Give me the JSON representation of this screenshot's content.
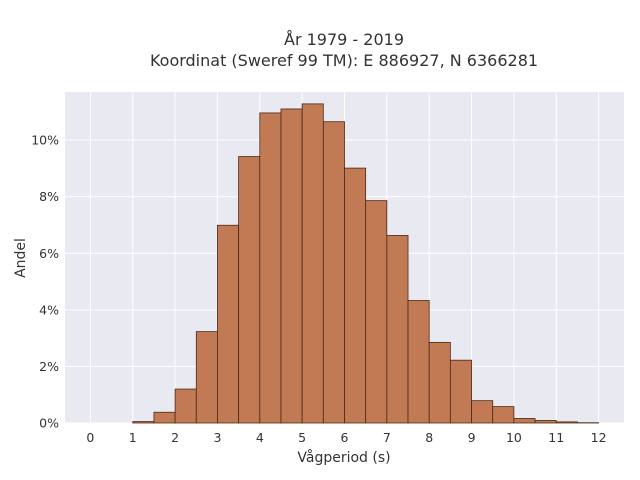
{
  "chart_data": {
    "type": "bar",
    "title_lines": [
      "År 1979 - 2019",
      "Koordinat (Sweref 99 TM): E 886927, N 6366281"
    ],
    "xlabel": "Vågperiod (s)",
    "ylabel": "Andel",
    "xlim": [
      -0.6,
      12.6
    ],
    "ylim": [
      0,
      11.7
    ],
    "x_ticks": [
      0,
      1,
      2,
      3,
      4,
      5,
      6,
      7,
      8,
      9,
      10,
      11,
      12
    ],
    "x_tick_labels": [
      "0",
      "1",
      "2",
      "3",
      "4",
      "5",
      "6",
      "7",
      "8",
      "9",
      "10",
      "11",
      "12"
    ],
    "y_ticks": [
      0,
      2,
      4,
      6,
      8,
      10
    ],
    "y_tick_labels": [
      "0%",
      "2%",
      "4%",
      "6%",
      "8%",
      "10%"
    ],
    "bin_width": 0.5,
    "bin_edges_start": [
      1.0,
      1.5,
      2.0,
      2.5,
      3.0,
      3.5,
      4.0,
      4.5,
      5.0,
      5.5,
      6.0,
      6.5,
      7.0,
      7.5,
      8.0,
      8.5,
      9.0,
      9.5,
      10.0,
      10.5,
      11.0,
      11.5
    ],
    "values": [
      0.05,
      0.38,
      1.2,
      3.23,
      6.99,
      9.42,
      10.96,
      11.1,
      11.28,
      10.65,
      9.01,
      7.86,
      6.63,
      4.33,
      2.85,
      2.22,
      0.79,
      0.58,
      0.16,
      0.09,
      0.04,
      0.01
    ],
    "grid": true,
    "colors": {
      "bar_fill": "#c17a53",
      "bar_stroke": "#4a2a18",
      "plot_background": "#e9e9f1",
      "grid": "#ffffff",
      "text": "#333333"
    }
  }
}
